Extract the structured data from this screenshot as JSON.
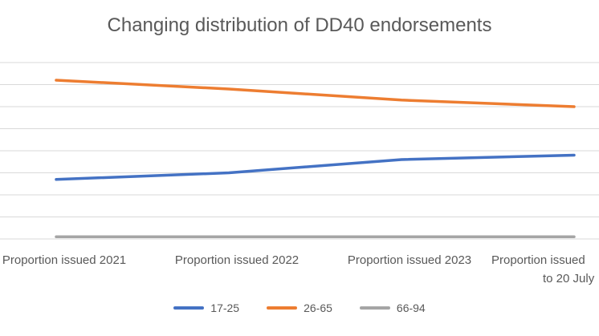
{
  "chart_data": {
    "type": "line",
    "title": "Changing distribution of DD40 endorsements",
    "categories": [
      [
        "Proportion issued 2021"
      ],
      [
        "Proportion issued 2022"
      ],
      [
        "Proportion issued 2023"
      ],
      [
        "Proportion issued",
        "to 20 July"
      ]
    ],
    "ylim": [
      0,
      8
    ],
    "grid": true,
    "legend": "bottom",
    "series": [
      {
        "name": "17-25",
        "color": "#4472C4",
        "values": [
          2.7,
          3.0,
          3.6,
          3.8
        ]
      },
      {
        "name": "26-65",
        "color": "#ED7D31",
        "values": [
          7.2,
          6.8,
          6.3,
          6.0
        ]
      },
      {
        "name": "66-94",
        "color": "#A5A5A5",
        "values": [
          0.1,
          0.1,
          0.1,
          0.1
        ]
      }
    ]
  }
}
